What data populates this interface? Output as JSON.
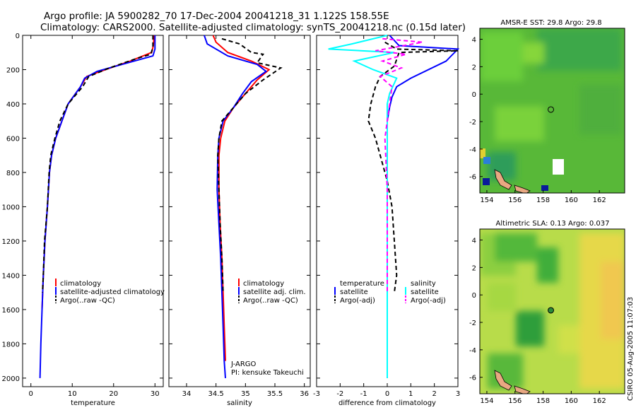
{
  "header": {
    "line1": "Argo profile: JA 5900282_70 17-Dec-2004 20041218_31 1.122S 158.55E",
    "line2": "Climatology: CARS2000. Satellite-adjusted climatology: synTS_20041218.nc (0.15d later)"
  },
  "side_label": "CSIRO 05-Aug-2005 11:07:03",
  "chart_data": [
    {
      "type": "line",
      "name": "temperature-profile",
      "xlabel": "temperature",
      "xlim": [
        -2,
        32
      ],
      "ylim": [
        2050,
        0
      ],
      "xticks": [
        0,
        10,
        20,
        30
      ],
      "yticks": [
        0,
        200,
        400,
        600,
        800,
        1000,
        1200,
        1400,
        1600,
        1800,
        2000
      ],
      "legend": [
        "climatology",
        "satellite-adjusted climatology",
        "Argo(..raw -QC)"
      ],
      "series": [
        {
          "name": "climatology",
          "color": "#ff0000",
          "dash": "",
          "points": [
            [
              29.8,
              0
            ],
            [
              29.6,
              60
            ],
            [
              29.2,
              100
            ],
            [
              24,
              150
            ],
            [
              18,
              200
            ],
            [
              13.5,
              240
            ],
            [
              12,
              300
            ],
            [
              9,
              400
            ],
            [
              7.5,
              500
            ],
            [
              6,
              600
            ],
            [
              5,
              700
            ],
            [
              4.5,
              800
            ],
            [
              4,
              1000
            ],
            [
              3.4,
              1200
            ],
            [
              3,
              1400
            ],
            [
              2.7,
              1600
            ]
          ]
        },
        {
          "name": "satellite-adjusted climatology",
          "color": "#0000ff",
          "dash": "",
          "points": [
            [
              30,
              0
            ],
            [
              30,
              80
            ],
            [
              29.5,
              120
            ],
            [
              22,
              170
            ],
            [
              16,
              210
            ],
            [
              13,
              250
            ],
            [
              12,
              300
            ],
            [
              9,
              400
            ],
            [
              7.5,
              500
            ],
            [
              6,
              600
            ],
            [
              5,
              700
            ],
            [
              4.5,
              800
            ],
            [
              4,
              1000
            ],
            [
              3.4,
              1200
            ],
            [
              3,
              1400
            ],
            [
              2.7,
              1600
            ],
            [
              2.4,
              1800
            ],
            [
              2.2,
              2000
            ]
          ]
        },
        {
          "name": "Argo(..raw -QC)",
          "color": "#000000",
          "dash": "6,4",
          "points": [
            [
              29.5,
              0
            ],
            [
              29.5,
              70
            ],
            [
              29,
              110
            ],
            [
              25,
              140
            ],
            [
              19,
              190
            ],
            [
              14,
              240
            ],
            [
              12.5,
              300
            ],
            [
              9,
              400
            ],
            [
              7,
              500
            ],
            [
              5.8,
              600
            ],
            [
              4.8,
              700
            ],
            [
              4.4,
              800
            ],
            [
              4,
              1000
            ],
            [
              3.3,
              1200
            ],
            [
              3,
              1400
            ],
            [
              2.8,
              1500
            ]
          ]
        }
      ]
    },
    {
      "type": "line",
      "name": "salinity-profile",
      "xlabel": "salinity",
      "xlim": [
        33.7,
        36.1
      ],
      "ylim": [
        2050,
        0
      ],
      "xticks": [
        34,
        34.5,
        35,
        35.5,
        36
      ],
      "yticks": [
        0,
        200,
        400,
        600,
        800,
        1000,
        1200,
        1400,
        1600,
        1800,
        2000
      ],
      "legend": [
        "climatology",
        "satellite adj. clim.",
        "Argo(..raw -QC)"
      ],
      "annotations": [
        "J-ARGO",
        "PI: kensuke Takeuchi"
      ],
      "series": [
        {
          "name": "climatology",
          "color": "#ff0000",
          "dash": "",
          "points": [
            [
              34.45,
              0
            ],
            [
              34.5,
              40
            ],
            [
              34.7,
              100
            ],
            [
              35.1,
              150
            ],
            [
              35.4,
              200
            ],
            [
              35.2,
              260
            ],
            [
              35,
              340
            ],
            [
              34.8,
              420
            ],
            [
              34.65,
              500
            ],
            [
              34.58,
              600
            ],
            [
              34.55,
              700
            ],
            [
              34.55,
              900
            ],
            [
              34.57,
              1100
            ],
            [
              34.6,
              1300
            ],
            [
              34.62,
              1500
            ],
            [
              34.64,
              1700
            ],
            [
              34.65,
              1800
            ],
            [
              34.66,
              1900
            ]
          ]
        },
        {
          "name": "satellite adj. clim.",
          "color": "#0000ff",
          "dash": "",
          "points": [
            [
              34.3,
              0
            ],
            [
              34.35,
              50
            ],
            [
              34.7,
              120
            ],
            [
              35.2,
              170
            ],
            [
              35.35,
              210
            ],
            [
              35.1,
              270
            ],
            [
              34.95,
              340
            ],
            [
              34.8,
              420
            ],
            [
              34.62,
              500
            ],
            [
              34.55,
              600
            ],
            [
              34.53,
              700
            ],
            [
              34.52,
              900
            ],
            [
              34.55,
              1100
            ],
            [
              34.58,
              1300
            ],
            [
              34.6,
              1500
            ],
            [
              34.62,
              1700
            ],
            [
              34.64,
              1900
            ],
            [
              34.66,
              2000
            ]
          ]
        },
        {
          "name": "Argo(..raw -QC)",
          "color": "#000000",
          "dash": "6,4",
          "points": [
            [
              34.6,
              20
            ],
            [
              34.9,
              50
            ],
            [
              35.1,
              100
            ],
            [
              35.3,
              110
            ],
            [
              35.2,
              160
            ],
            [
              35.6,
              190
            ],
            [
              35.3,
              260
            ],
            [
              35,
              340
            ],
            [
              34.8,
              420
            ],
            [
              34.6,
              500
            ],
            [
              34.55,
              600
            ],
            [
              34.53,
              700
            ],
            [
              34.55,
              900
            ],
            [
              34.57,
              1100
            ],
            [
              34.6,
              1300
            ],
            [
              34.62,
              1500
            ]
          ]
        }
      ]
    },
    {
      "type": "line",
      "name": "difference-profile",
      "xlabel": "difference from climatology",
      "xlim": [
        -3,
        3
      ],
      "ylim": [
        2050,
        0
      ],
      "xticks": [
        -3,
        -2,
        -1,
        0,
        1,
        2,
        3
      ],
      "yticks": [
        0,
        200,
        400,
        600,
        800,
        1000,
        1200,
        1400,
        1600,
        1800,
        2000
      ],
      "legend": [
        "temperature",
        "satellite",
        "Argo(-adj)",
        "salinity",
        "satellite",
        "Argo(-adj)"
      ],
      "series": [
        {
          "name": "temperature satellite",
          "color": "#0000ff",
          "dash": "",
          "points": [
            [
              0.1,
              0
            ],
            [
              0.5,
              60
            ],
            [
              3,
              80
            ],
            [
              2.5,
              150
            ],
            [
              1,
              250
            ],
            [
              0.4,
              300
            ],
            [
              0.2,
              360
            ],
            [
              0.1,
              420
            ],
            [
              0,
              500
            ],
            [
              0,
              2000
            ]
          ]
        },
        {
          "name": "temperature Argo(-adj)",
          "color": "#000000",
          "dash": "6,4",
          "points": [
            [
              -0.1,
              40
            ],
            [
              0.4,
              80
            ],
            [
              3,
              90
            ],
            [
              0.5,
              100
            ],
            [
              0.3,
              180
            ],
            [
              -0.3,
              240
            ],
            [
              -0.5,
              300
            ],
            [
              -0.7,
              400
            ],
            [
              -0.8,
              500
            ],
            [
              -0.5,
              600
            ],
            [
              -0.3,
              700
            ],
            [
              0,
              850
            ],
            [
              0.2,
              1000
            ],
            [
              0.3,
              1200
            ],
            [
              0.4,
              1400
            ],
            [
              0.3,
              1500
            ]
          ]
        },
        {
          "name": "salinity satellite",
          "color": "#00ffff",
          "dash": "",
          "points": [
            [
              0,
              0
            ],
            [
              -1.5,
              50
            ],
            [
              -2.5,
              80
            ],
            [
              0.3,
              100
            ],
            [
              -1.4,
              150
            ],
            [
              -0.6,
              200
            ],
            [
              0.4,
              250
            ],
            [
              0.1,
              340
            ],
            [
              0,
              400
            ],
            [
              0,
              2000
            ]
          ]
        },
        {
          "name": "salinity Argo(-adj)",
          "color": "#ff00ff",
          "dash": "6,4",
          "points": [
            [
              -0.2,
              20
            ],
            [
              1.5,
              40
            ],
            [
              -0.5,
              90
            ],
            [
              0.8,
              110
            ],
            [
              -0.2,
              150
            ],
            [
              0.6,
              190
            ],
            [
              -0.3,
              240
            ],
            [
              0.2,
              300
            ],
            [
              0.1,
              400
            ],
            [
              -0.1,
              600
            ],
            [
              0,
              900
            ],
            [
              0,
              1500
            ]
          ]
        }
      ]
    },
    {
      "type": "heatmap",
      "name": "amsr-e-sst-map",
      "title": "AMSR-E SST: 29.8  Argo: 29.8",
      "xticks": [
        154,
        156,
        158,
        160,
        162
      ],
      "yticks": [
        4,
        2,
        0,
        -2,
        -4,
        -6
      ],
      "xlim": [
        153.5,
        163.8
      ],
      "ylim": [
        -7.2,
        4.8
      ],
      "marker": {
        "lon": 158.55,
        "lat": -1.12
      }
    },
    {
      "type": "heatmap",
      "name": "altimetric-sla-map",
      "title": "Altimetric SLA: 0.13  Argo: 0.037",
      "xticks": [
        154,
        156,
        158,
        160,
        162
      ],
      "yticks": [
        4,
        2,
        0,
        -2,
        -4,
        -6
      ],
      "xlim": [
        153.5,
        163.8
      ],
      "ylim": [
        -7.2,
        4.8
      ],
      "marker": {
        "lon": 158.55,
        "lat": -1.12
      }
    }
  ]
}
